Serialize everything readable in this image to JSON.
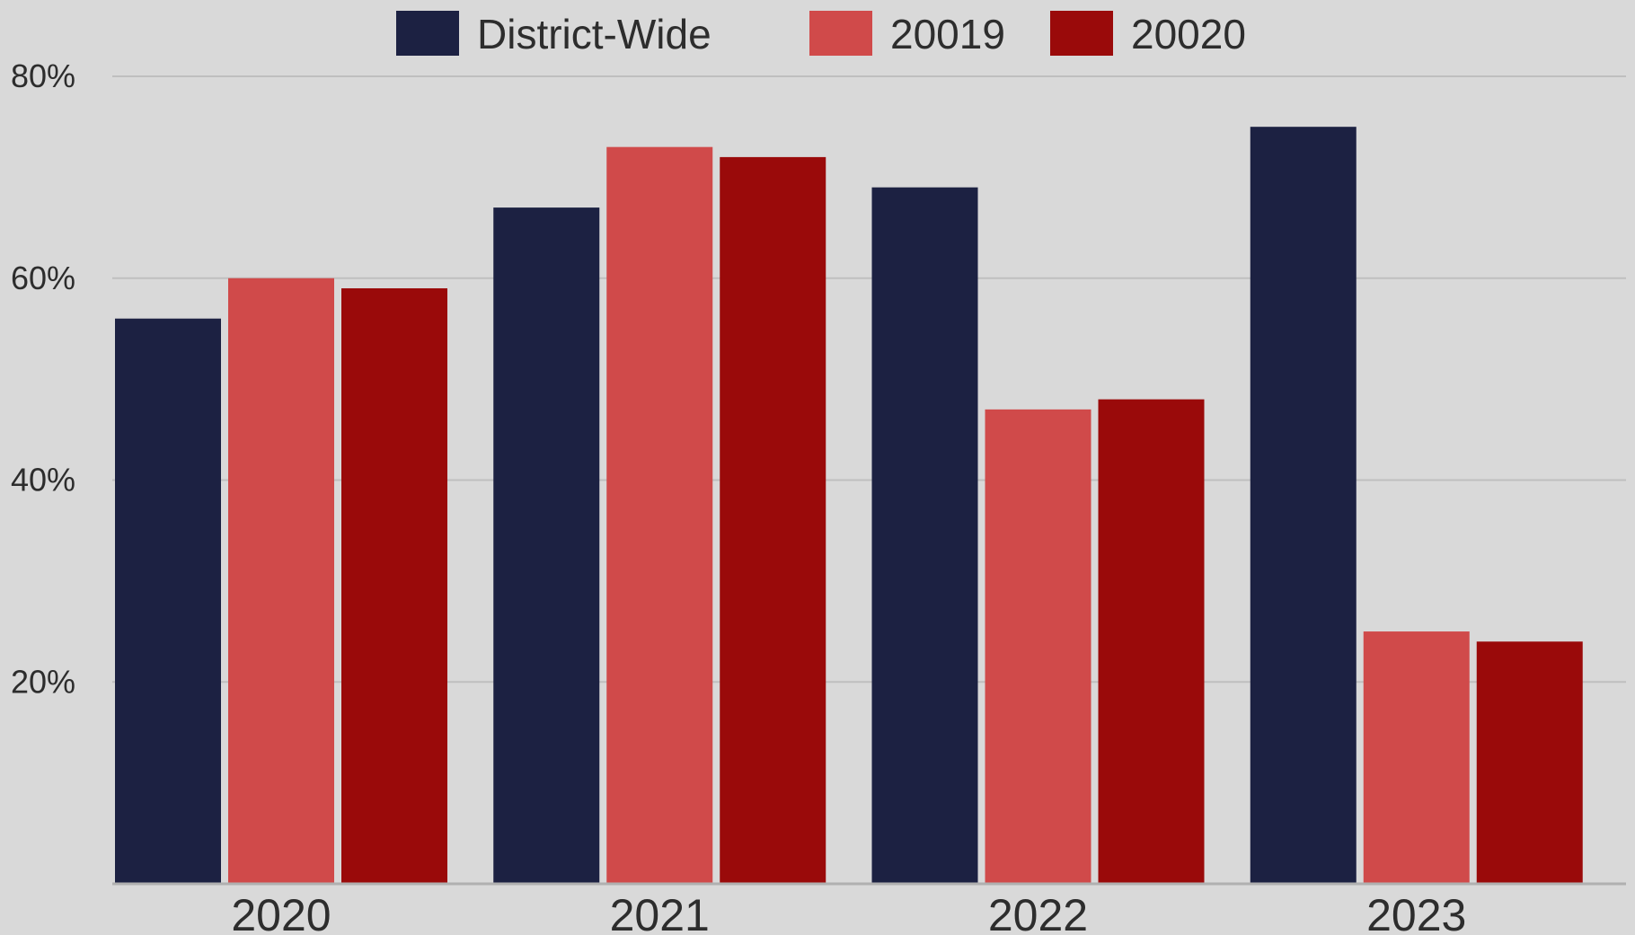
{
  "chart_data": {
    "type": "bar",
    "title": "",
    "xlabel": "",
    "ylabel": "",
    "categories": [
      "2020",
      "2021",
      "2022",
      "2023"
    ],
    "series": [
      {
        "name": "District-Wide",
        "color": "#1c2142",
        "values": [
          56,
          67,
          69,
          75
        ]
      },
      {
        "name": "20019",
        "color": "#d04a4a",
        "values": [
          60,
          73,
          47,
          25
        ]
      },
      {
        "name": "20020",
        "color": "#9a0a0a",
        "values": [
          59,
          72,
          48,
          24
        ]
      }
    ],
    "ylim": [
      0,
      80
    ],
    "yticks": [
      20,
      40,
      60,
      80
    ],
    "ytick_labels": [
      "20%",
      "40%",
      "60%",
      "80%"
    ],
    "grid": true,
    "legend": "top-center"
  }
}
